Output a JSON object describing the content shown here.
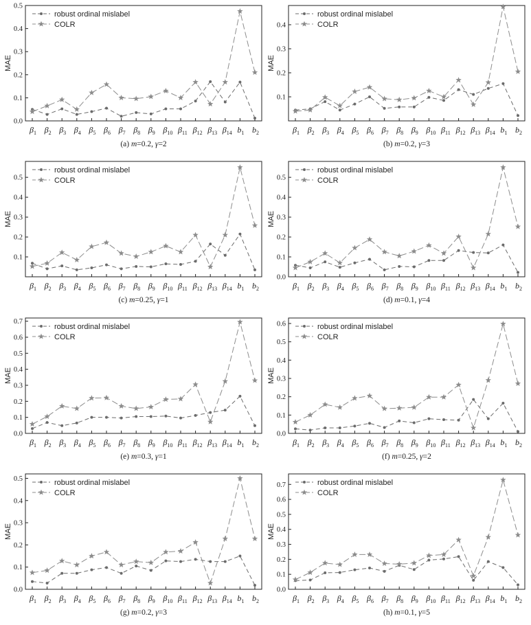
{
  "figure": {
    "ylabel": "MAE",
    "series_names": [
      "robust ordinal mislabel",
      "COLR"
    ],
    "x_labels": [
      {
        "sym": "β",
        "sub": "1"
      },
      {
        "sym": "β",
        "sub": "2"
      },
      {
        "sym": "β",
        "sub": "3"
      },
      {
        "sym": "β",
        "sub": "4"
      },
      {
        "sym": "β",
        "sub": "5"
      },
      {
        "sym": "β",
        "sub": "6"
      },
      {
        "sym": "β",
        "sub": "7"
      },
      {
        "sym": "β",
        "sub": "8"
      },
      {
        "sym": "β",
        "sub": "9"
      },
      {
        "sym": "β",
        "sub": "10"
      },
      {
        "sym": "β",
        "sub": "11"
      },
      {
        "sym": "β",
        "sub": "12"
      },
      {
        "sym": "β",
        "sub": "13"
      },
      {
        "sym": "β",
        "sub": "14"
      },
      {
        "sym": "b",
        "sub": "1"
      },
      {
        "sym": "b",
        "sub": "2"
      }
    ],
    "colors": {
      "series1": "#6b6b6b",
      "series2": "#8c8c8c",
      "axis": "#222222"
    }
  },
  "chart_data": [
    {
      "type": "line",
      "panel": "a",
      "caption": {
        "prefix": "(a) ",
        "m": "0.2",
        "gamma": "2"
      },
      "ylim": [
        0,
        0.5
      ],
      "yticks": [
        0.0,
        0.1,
        0.2,
        0.3,
        0.4,
        0.5
      ],
      "legend": "top-left",
      "series": [
        {
          "name": "robust ordinal mislabel",
          "values": [
            0.05,
            0.028,
            0.052,
            0.028,
            0.04,
            0.055,
            0.02,
            0.036,
            0.03,
            0.052,
            0.052,
            0.086,
            0.17,
            0.082,
            0.168,
            0.012
          ]
        },
        {
          "name": "COLR",
          "values": [
            0.04,
            0.065,
            0.092,
            0.05,
            0.122,
            0.158,
            0.1,
            0.096,
            0.105,
            0.13,
            0.1,
            0.168,
            0.073,
            0.168,
            0.475,
            0.21
          ]
        }
      ]
    },
    {
      "type": "line",
      "panel": "b",
      "caption": {
        "prefix": "(b) ",
        "m": "0.2",
        "gamma": "3"
      },
      "ylim": [
        0,
        0.48
      ],
      "yticks": [
        0.1,
        0.2,
        0.3,
        0.4
      ],
      "legend": "top-left",
      "series": [
        {
          "name": "robust ordinal mislabel",
          "values": [
            0.045,
            0.05,
            0.08,
            0.045,
            0.07,
            0.1,
            0.052,
            0.058,
            0.058,
            0.098,
            0.085,
            0.13,
            0.11,
            0.135,
            0.155,
            0.022
          ]
        },
        {
          "name": "COLR",
          "values": [
            0.04,
            0.045,
            0.098,
            0.063,
            0.122,
            0.14,
            0.092,
            0.088,
            0.095,
            0.125,
            0.1,
            0.17,
            0.068,
            0.16,
            0.475,
            0.205
          ]
        }
      ]
    },
    {
      "type": "line",
      "panel": "c",
      "caption": {
        "prefix": "(c) ",
        "m": "0.25",
        "gamma": "1"
      },
      "ylim": [
        0,
        0.58
      ],
      "yticks": [
        0.1,
        0.2,
        0.3,
        0.4,
        0.5
      ],
      "legend": "top-left",
      "series": [
        {
          "name": "robust ordinal mislabel",
          "values": [
            0.068,
            0.04,
            0.055,
            0.035,
            0.045,
            0.06,
            0.04,
            0.052,
            0.05,
            0.065,
            0.062,
            0.078,
            0.165,
            0.108,
            0.215,
            0.035
          ]
        },
        {
          "name": "COLR",
          "values": [
            0.052,
            0.068,
            0.122,
            0.085,
            0.152,
            0.172,
            0.118,
            0.102,
            0.125,
            0.155,
            0.125,
            0.21,
            0.05,
            0.21,
            0.55,
            0.258
          ]
        }
      ]
    },
    {
      "type": "line",
      "panel": "d",
      "caption": {
        "prefix": "(d) ",
        "m": "0.1",
        "gamma": "4"
      },
      "ylim": [
        0,
        0.58
      ],
      "yticks": [
        0.0,
        0.1,
        0.2,
        0.3,
        0.4,
        0.5
      ],
      "legend": "top-left",
      "series": [
        {
          "name": "robust ordinal mislabel",
          "values": [
            0.058,
            0.045,
            0.075,
            0.048,
            0.07,
            0.088,
            0.035,
            0.052,
            0.05,
            0.082,
            0.082,
            0.132,
            0.122,
            0.12,
            0.16,
            0.022
          ]
        },
        {
          "name": "COLR",
          "values": [
            0.045,
            0.075,
            0.118,
            0.07,
            0.145,
            0.188,
            0.125,
            0.105,
            0.128,
            0.158,
            0.118,
            0.202,
            0.045,
            0.215,
            0.55,
            0.252
          ]
        }
      ]
    },
    {
      "type": "line",
      "panel": "e",
      "caption": {
        "prefix": "(e) ",
        "m": "0.3",
        "gamma": "1"
      },
      "ylim": [
        0,
        0.72
      ],
      "yticks": [
        0.0,
        0.1,
        0.2,
        0.3,
        0.4,
        0.5,
        0.6,
        0.7
      ],
      "legend": "top-left",
      "series": [
        {
          "name": "robust ordinal mislabel",
          "values": [
            0.03,
            0.068,
            0.048,
            0.065,
            0.1,
            0.1,
            0.096,
            0.105,
            0.105,
            0.108,
            0.096,
            0.112,
            0.13,
            0.145,
            0.232,
            0.048
          ]
        },
        {
          "name": "COLR",
          "values": [
            0.058,
            0.105,
            0.17,
            0.155,
            0.22,
            0.222,
            0.17,
            0.155,
            0.165,
            0.212,
            0.215,
            0.305,
            0.072,
            0.325,
            0.695,
            0.33
          ]
        }
      ]
    },
    {
      "type": "line",
      "panel": "f",
      "caption": {
        "prefix": "(f) ",
        "m": "0.25",
        "gamma": "2"
      },
      "ylim": [
        0,
        0.63
      ],
      "yticks": [
        0.0,
        0.1,
        0.2,
        0.3,
        0.4,
        0.5,
        0.6
      ],
      "legend": "top-left",
      "series": [
        {
          "name": "robust ordinal mislabel",
          "values": [
            0.025,
            0.018,
            0.03,
            0.03,
            0.04,
            0.055,
            0.032,
            0.068,
            0.058,
            0.08,
            0.075,
            0.072,
            0.185,
            0.08,
            0.165,
            0.01
          ]
        },
        {
          "name": "COLR",
          "values": [
            0.062,
            0.1,
            0.158,
            0.142,
            0.192,
            0.205,
            0.135,
            0.138,
            0.142,
            0.198,
            0.198,
            0.265,
            0.03,
            0.29,
            0.598,
            0.272
          ]
        }
      ]
    },
    {
      "type": "line",
      "panel": "g",
      "caption": {
        "prefix": "(g) ",
        "m": "0.2",
        "gamma": "3"
      },
      "ylim": [
        0,
        0.52
      ],
      "yticks": [
        0.0,
        0.1,
        0.2,
        0.3,
        0.4,
        0.5
      ],
      "legend": "top-left",
      "series": [
        {
          "name": "robust ordinal mislabel",
          "values": [
            0.035,
            0.028,
            0.072,
            0.072,
            0.088,
            0.098,
            0.072,
            0.105,
            0.085,
            0.128,
            0.125,
            0.135,
            0.125,
            0.125,
            0.15,
            0.018
          ]
        },
        {
          "name": "COLR",
          "values": [
            0.075,
            0.085,
            0.128,
            0.11,
            0.15,
            0.168,
            0.11,
            0.125,
            0.12,
            0.168,
            0.172,
            0.212,
            0.028,
            0.228,
            0.5,
            0.228
          ]
        }
      ]
    },
    {
      "type": "line",
      "panel": "h",
      "caption": {
        "prefix": "(h) ",
        "m": "0.1",
        "gamma": "5"
      },
      "ylim": [
        0,
        0.77
      ],
      "yticks": [
        0.0,
        0.1,
        0.2,
        0.3,
        0.4,
        0.5,
        0.6,
        0.7
      ],
      "legend": "top-left",
      "series": [
        {
          "name": "robust ordinal mislabel",
          "values": [
            0.058,
            0.062,
            0.11,
            0.112,
            0.13,
            0.142,
            0.12,
            0.16,
            0.132,
            0.195,
            0.202,
            0.218,
            0.06,
            0.185,
            0.145,
            0.03
          ]
        },
        {
          "name": "COLR",
          "values": [
            0.065,
            0.112,
            0.175,
            0.165,
            0.232,
            0.232,
            0.172,
            0.168,
            0.175,
            0.225,
            0.232,
            0.33,
            0.09,
            0.348,
            0.73,
            0.362
          ]
        }
      ]
    }
  ]
}
